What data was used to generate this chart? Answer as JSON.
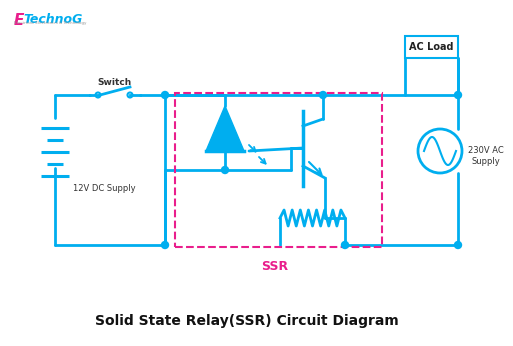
{
  "title": "Solid State Relay(SSR) Circuit Diagram",
  "title_fontsize": 10,
  "wire_color": "#00AEEF",
  "wire_lw": 2.0,
  "dashed_color": "#E91E8C",
  "dashed_lw": 1.5,
  "bg_color": "#FFFFFF",
  "label_color": "#333333",
  "ssr_label": "SSR",
  "switch_label": "Switch",
  "dc_label": "12V DC Supply",
  "ac_label": "230V AC\nSupply",
  "acload_label": "AC Load"
}
